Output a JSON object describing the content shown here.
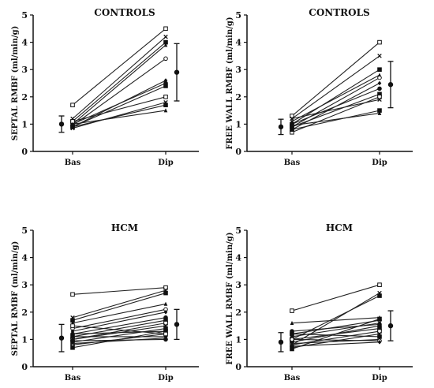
{
  "chart_data": [
    {
      "type": "line",
      "title": "CONTROLS",
      "ylabel": "SEPTAL  RMBF  (ml/min/g)",
      "categories": [
        "Bas",
        "Dip"
      ],
      "ylim": [
        0,
        5
      ],
      "yticks": [
        "0",
        "1",
        "2",
        "3",
        "4",
        "5"
      ],
      "subjects": [
        [
          1.7,
          4.5
        ],
        [
          1.2,
          4.2
        ],
        [
          1.1,
          4.0
        ],
        [
          1.0,
          3.9
        ],
        [
          0.95,
          3.4
        ],
        [
          0.9,
          2.6
        ],
        [
          1.0,
          2.5
        ],
        [
          0.9,
          2.4
        ],
        [
          1.1,
          2.0
        ],
        [
          0.85,
          1.8
        ],
        [
          0.9,
          1.7
        ],
        [
          1.0,
          1.5
        ]
      ],
      "mean": [
        1.0,
        2.9
      ],
      "sd": [
        0.3,
        1.05
      ]
    },
    {
      "type": "line",
      "title": "CONTROLS",
      "ylabel": "FREE WALL  RMBF  (ml/min/g)",
      "categories": [
        "Bas",
        "Dip"
      ],
      "ylim": [
        0,
        5
      ],
      "yticks": [
        "0",
        "1",
        "2",
        "3",
        "4",
        "5"
      ],
      "subjects": [
        [
          1.3,
          4.0
        ],
        [
          1.2,
          3.5
        ],
        [
          1.0,
          3.0
        ],
        [
          1.1,
          2.8
        ],
        [
          0.9,
          2.7
        ],
        [
          0.8,
          2.5
        ],
        [
          1.0,
          2.3
        ],
        [
          0.9,
          2.1
        ],
        [
          0.7,
          2.0
        ],
        [
          1.2,
          1.9
        ],
        [
          0.8,
          1.5
        ],
        [
          0.95,
          1.4
        ]
      ],
      "mean": [
        0.9,
        2.45
      ],
      "sd": [
        0.28,
        0.85
      ]
    },
    {
      "type": "line",
      "title": "HCM",
      "ylabel": "SEPTAL  RMBF  (ml/min/g)",
      "categories": [
        "Bas",
        "Dip"
      ],
      "ylim": [
        0,
        5
      ],
      "yticks": [
        "0",
        "1",
        "2",
        "3",
        "4",
        "5"
      ],
      "subjects": [
        [
          2.65,
          2.9
        ],
        [
          1.8,
          2.8
        ],
        [
          1.7,
          2.7
        ],
        [
          1.6,
          2.3
        ],
        [
          1.4,
          2.1
        ],
        [
          1.3,
          2.0
        ],
        [
          1.2,
          1.8
        ],
        [
          1.1,
          1.7
        ],
        [
          1.0,
          1.6
        ],
        [
          1.0,
          1.5
        ],
        [
          0.9,
          1.4
        ],
        [
          1.2,
          1.3
        ],
        [
          0.8,
          1.2
        ],
        [
          1.1,
          1.1
        ],
        [
          0.95,
          1.0
        ],
        [
          0.7,
          1.3
        ],
        [
          1.5,
          1.2
        ],
        [
          0.85,
          1.05
        ]
      ],
      "mean": [
        1.05,
        1.55
      ],
      "sd": [
        0.5,
        0.55
      ]
    },
    {
      "type": "line",
      "title": "HCM",
      "ylabel": "FREE WALL  RMBF  (ml/min/g)",
      "categories": [
        "Bas",
        "Dip"
      ],
      "ylim": [
        0,
        5
      ],
      "yticks": [
        "0",
        "1",
        "2",
        "3",
        "4",
        "5"
      ],
      "subjects": [
        [
          2.05,
          3.0
        ],
        [
          0.8,
          2.7
        ],
        [
          1.0,
          2.6
        ],
        [
          1.6,
          1.8
        ],
        [
          1.2,
          1.7
        ],
        [
          1.1,
          1.6
        ],
        [
          0.9,
          1.5
        ],
        [
          1.0,
          1.4
        ],
        [
          0.8,
          1.3
        ],
        [
          0.7,
          1.2
        ],
        [
          1.2,
          1.1
        ],
        [
          0.85,
          1.0
        ],
        [
          1.0,
          0.95
        ],
        [
          0.75,
          0.9
        ],
        [
          1.3,
          1.55
        ],
        [
          0.65,
          1.75
        ]
      ],
      "mean": [
        0.9,
        1.5
      ],
      "sd": [
        0.35,
        0.55
      ]
    }
  ]
}
